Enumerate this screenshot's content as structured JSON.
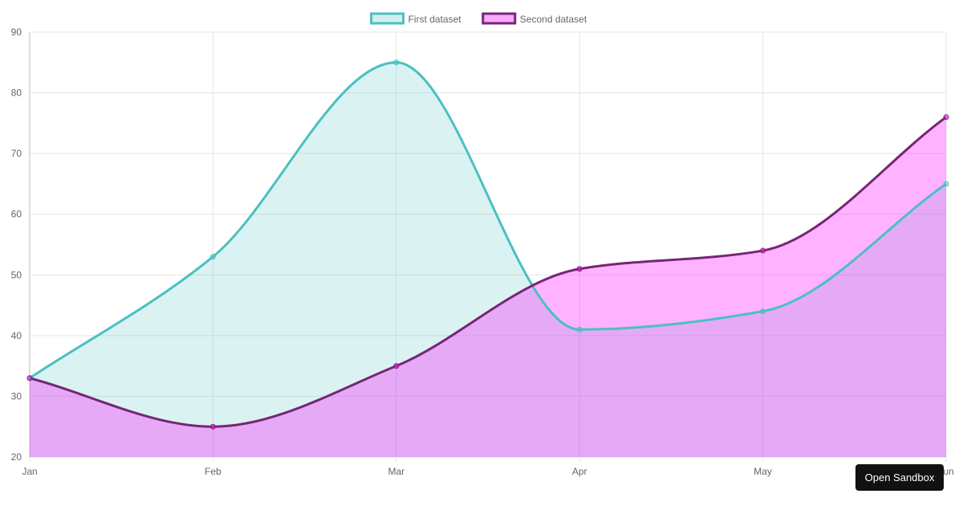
{
  "chart_data": {
    "type": "area",
    "categories": [
      "Jan",
      "Feb",
      "Mar",
      "Apr",
      "May",
      "Jun"
    ],
    "series": [
      {
        "name": "First dataset",
        "values": [
          33,
          53,
          85,
          41,
          44,
          65
        ],
        "border": "#4bc0c0",
        "fill": "#4bc0c0",
        "fill_opacity": 0.2
      },
      {
        "name": "Second dataset",
        "values": [
          33,
          25,
          35,
          51,
          54,
          76
        ],
        "border": "#742774",
        "fill": "#ff00ff",
        "fill_opacity": 0.3
      }
    ],
    "ylim": [
      20,
      90
    ],
    "yticks": [
      20,
      30,
      40,
      50,
      60,
      70,
      80,
      90
    ],
    "title": "",
    "xlabel": "",
    "ylabel": "",
    "grid": true,
    "legend": "top-center",
    "smooth": true,
    "fill": "origin"
  },
  "ui": {
    "sandbox_label": "Open Sandbox"
  }
}
